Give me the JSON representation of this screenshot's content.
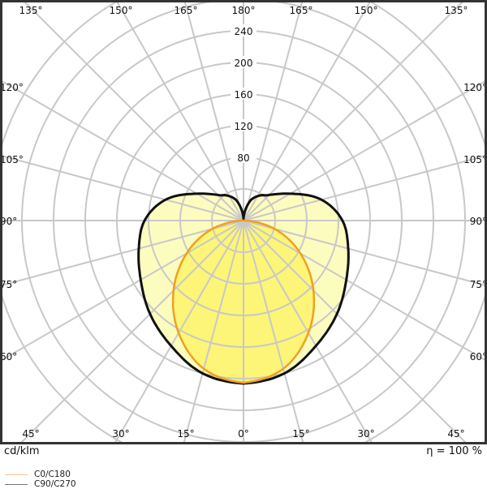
{
  "chart_data": {
    "type": "polar",
    "unit_label": "cd/klm",
    "efficiency_label": "η = 100 %",
    "radial_ticks": [
      80,
      120,
      160,
      200,
      240
    ],
    "radial_step": 40,
    "radial_max": 320,
    "angle_step_deg": 15,
    "angle_labels": {
      "top": [
        "135°",
        "150°",
        "165°",
        "180°",
        "165°",
        "150°",
        "135°"
      ],
      "left": [
        "120°",
        "105°",
        "90°",
        "75°",
        "60°"
      ],
      "right": [
        "120°",
        "105°",
        "90°",
        "75°",
        "60°"
      ],
      "bottom": [
        "45°",
        "30°",
        "15°",
        "0°",
        "15°",
        "30°",
        "45°"
      ]
    },
    "series": [
      {
        "name": "C0/C180",
        "color": "#f0a020",
        "fill": "#fbf36a",
        "angles_deg": [
          0,
          15,
          30,
          45,
          60,
          75,
          90,
          180
        ],
        "values": [
          205,
          194,
          164,
          125,
          83,
          41,
          0,
          0
        ]
      },
      {
        "name": "C90/C270",
        "color": "#111111",
        "fill": "#fdfbb4",
        "angles_deg": [
          0,
          15,
          30,
          45,
          60,
          75,
          90,
          105,
          120,
          135,
          145,
          160,
          170,
          180
        ],
        "values": [
          206,
          200,
          183,
          167,
          150,
          137,
          125,
          102,
          68,
          46,
          39,
          28,
          14,
          2
        ]
      }
    ],
    "legend_placement": "bottom-left",
    "grid": true
  }
}
